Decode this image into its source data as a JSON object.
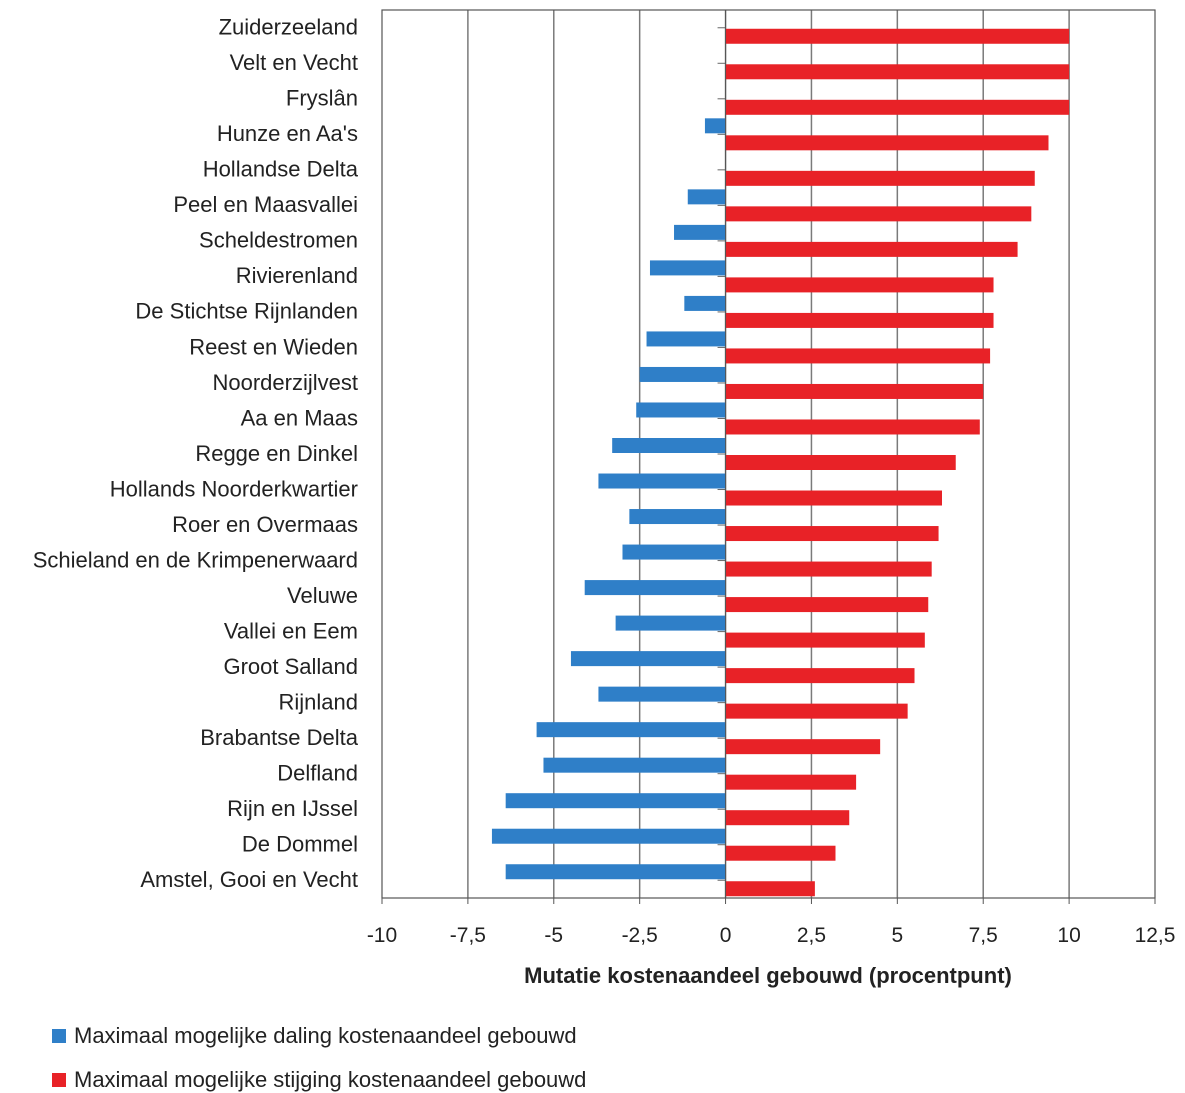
{
  "chart_data": {
    "type": "bar",
    "orientation": "horizontal",
    "categories": [
      "Zuiderzeeland",
      "Velt en Vecht",
      "Fryslân",
      "Hunze en Aa's",
      "Hollandse Delta",
      "Peel en Maasvallei",
      "Scheldestromen",
      "Rivierenland",
      "De Stichtse Rijnlanden",
      "Reest en Wieden",
      "Noorderzijlvest",
      "Aa en Maas",
      "Regge en Dinkel",
      "Hollands Noorderkwartier",
      "Roer en Overmaas",
      "Schieland en de Krimpenerwaard",
      "Veluwe",
      "Vallei en Eem",
      "Groot Salland",
      "Rijnland",
      "Brabantse Delta",
      "Delfland",
      "Rijn en IJssel",
      "De Dommel",
      "Amstel, Gooi en Vecht"
    ],
    "series": [
      {
        "name": "Maximaal mogelijke daling kostenaandeel gebouwd",
        "color": "#2f7fc8",
        "values": [
          0,
          0,
          0,
          -0.6,
          0,
          -1.1,
          -1.5,
          -2.2,
          -1.2,
          -2.3,
          -2.5,
          -2.6,
          -3.3,
          -3.7,
          -2.8,
          -3.0,
          -4.1,
          -3.2,
          -4.5,
          -3.7,
          -5.5,
          -5.3,
          -6.4,
          -6.8,
          -6.4
        ]
      },
      {
        "name": "Maximaal mogelijke stijging kostenaandeel gebouwd",
        "color": "#e82227",
        "values": [
          10.0,
          10.0,
          10.0,
          9.4,
          9.0,
          8.9,
          8.5,
          7.8,
          7.8,
          7.7,
          7.5,
          7.4,
          6.7,
          6.3,
          6.2,
          6.0,
          5.9,
          5.8,
          5.5,
          5.3,
          4.5,
          3.8,
          3.6,
          3.2,
          2.6
        ]
      }
    ],
    "xlim": [
      -10,
      12.5
    ],
    "xticks": [
      "-10",
      "-7,5",
      "-5",
      "-2,5",
      "0",
      "2,5",
      "5",
      "7,5",
      "10",
      "12,5"
    ],
    "xlabel": "Mutatie kostenaandeel gebouwd (procentpunt)",
    "ylabel": "",
    "title": "",
    "grid": "vertical",
    "legend_position": "bottom-left"
  }
}
